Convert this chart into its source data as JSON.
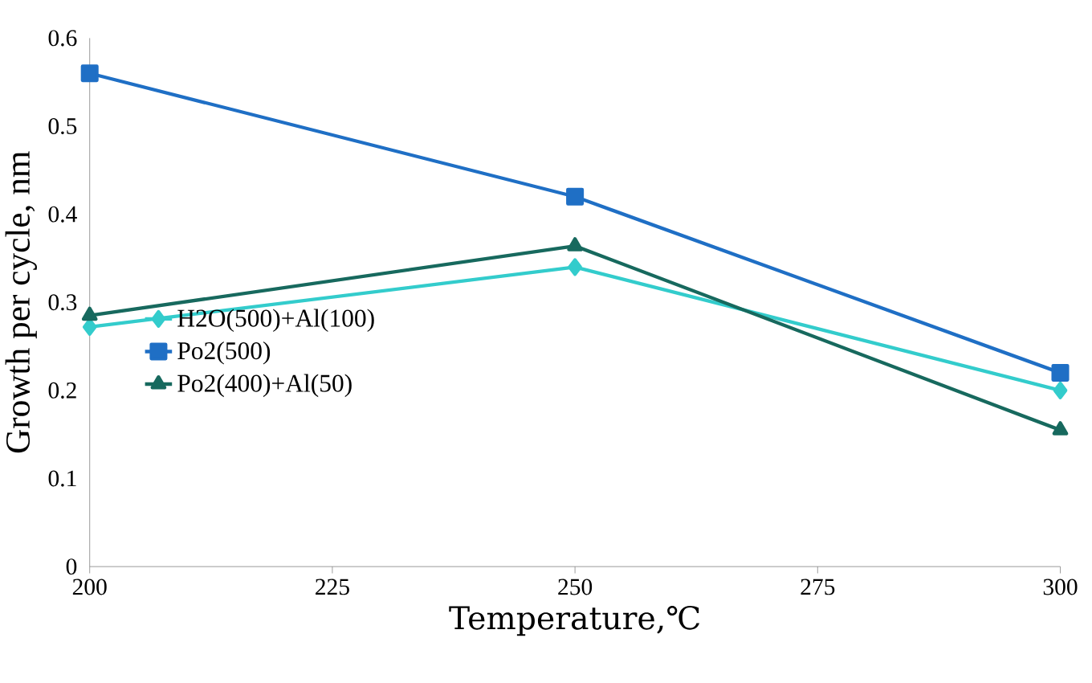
{
  "chart_data": {
    "type": "line",
    "xlabel": "Temperature,℃",
    "ylabel": "Growth per cycle, nm",
    "x": [
      200,
      250,
      300
    ],
    "series": [
      {
        "name": "H2O(500)+Al(100)",
        "color": "#33cccc",
        "marker": "diamond",
        "values": [
          0.272,
          0.34,
          0.2
        ]
      },
      {
        "name": "Po2(500)",
        "color": "#1f6fc5",
        "marker": "square",
        "values": [
          0.56,
          0.42,
          0.22
        ]
      },
      {
        "name": "Po2(400)+Al(50)",
        "color": "#17695e",
        "marker": "triangle",
        "values": [
          0.285,
          0.364,
          0.155
        ]
      }
    ],
    "xlim": [
      200,
      300
    ],
    "xticks": [
      200,
      225,
      250,
      275,
      300
    ],
    "ylim": [
      0,
      0.6
    ],
    "yticks": [
      0,
      0.1,
      0.2,
      0.3,
      0.4,
      0.5,
      0.6
    ],
    "grid": false,
    "legend": "left"
  }
}
